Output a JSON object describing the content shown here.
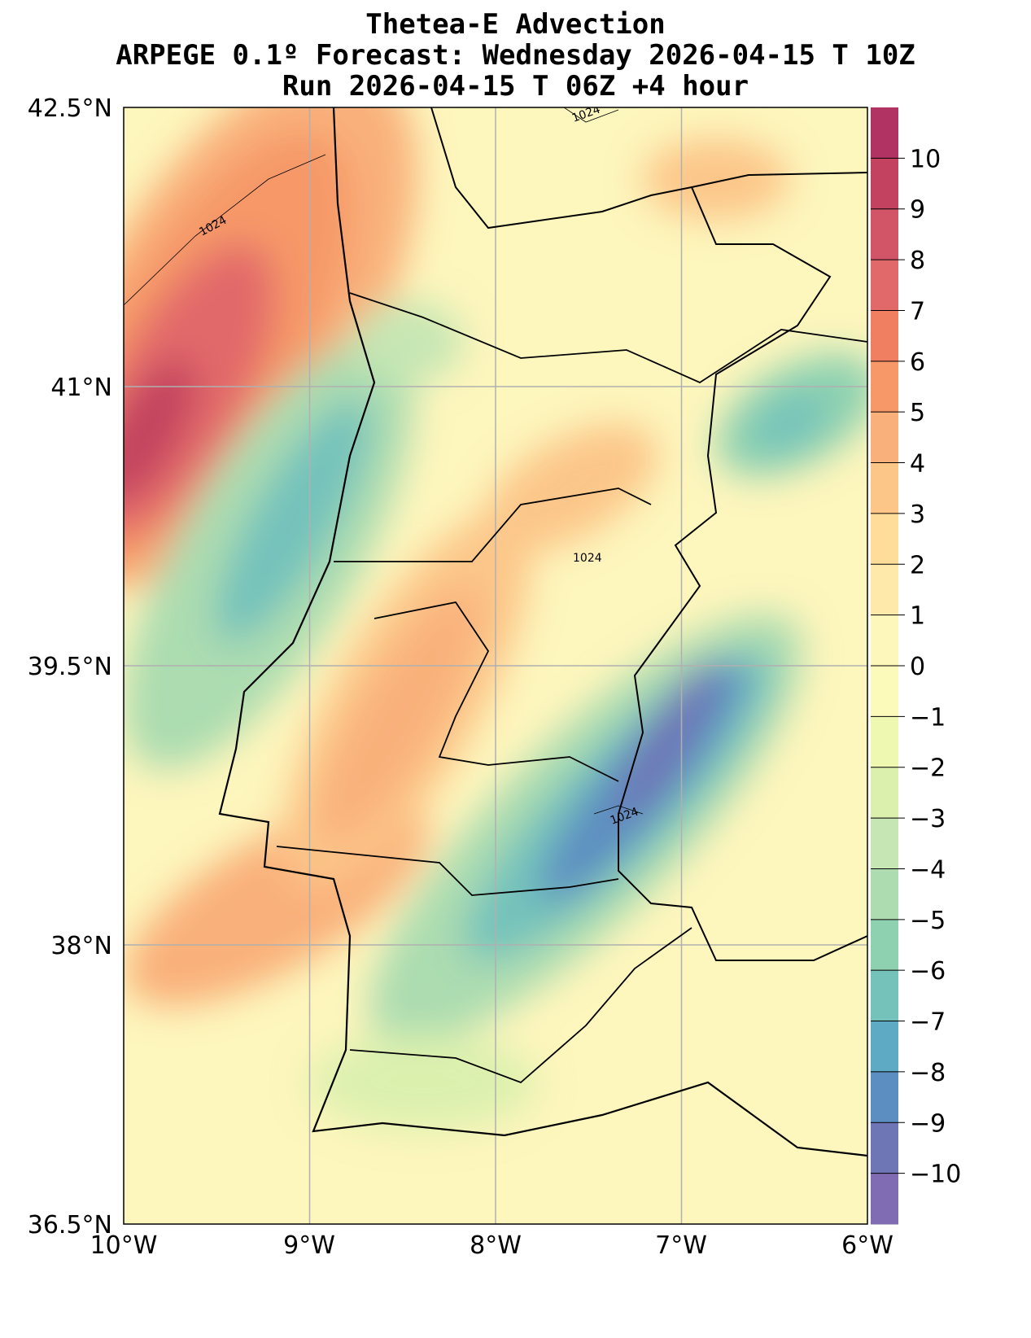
{
  "title": {
    "line1": "Thetea-E Advection",
    "line2": "ARPEGE 0.1º Forecast: Wednesday 2026-04-15 T 10Z",
    "line3": "Run 2026-04-15 T 06Z +4 hour"
  },
  "chart_data": {
    "type": "heatmap",
    "title": "Thetea-E Advection",
    "extent": {
      "lon": [
        -10,
        -6
      ],
      "lat": [
        36.5,
        42.5
      ]
    },
    "x_ticks": [
      "10°W",
      "9°W",
      "8°W",
      "7°W",
      "6°W"
    ],
    "y_ticks": [
      "42.5°N",
      "41°N",
      "39.5°N",
      "38°N",
      "36.5°N"
    ],
    "colorbar": {
      "ticks": [
        "10",
        "9",
        "8",
        "7",
        "6",
        "5",
        "4",
        "3",
        "2",
        "1",
        "0",
        "−1",
        "−2",
        "−3",
        "−4",
        "−5",
        "−6",
        "−7",
        "−8",
        "−9",
        "−10"
      ],
      "range": [
        -11,
        11
      ],
      "colors": [
        "#b13363",
        "#c2425f",
        "#d25567",
        "#e2696a",
        "#ef7f60",
        "#f69868",
        "#f9b07a",
        "#fcc689",
        "#fedc99",
        "#fee9aa",
        "#fef7bb",
        "#fbfabb",
        "#eff8b0",
        "#dcf0ae",
        "#c6e6b4",
        "#acdcb0",
        "#8ed1b0",
        "#75c2bb",
        "#5eaac4",
        "#5d8ec1",
        "#6f76b6",
        "#7f6cb2"
      ]
    },
    "isobar_labels": [
      "1024",
      "1024",
      "1024",
      "1024"
    ]
  }
}
